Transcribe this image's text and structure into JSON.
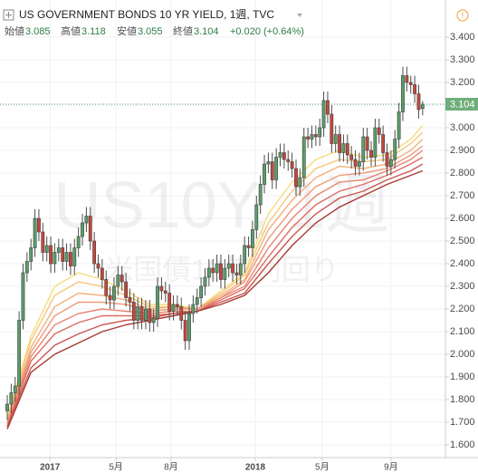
{
  "chart_data": {
    "type": "candlestick",
    "title": "US GOVERNMENT BONDS 10 YR YIELD, 1週, TVC",
    "ohlc_labels": [
      "始値",
      "高値",
      "安値",
      "終値"
    ],
    "change": "+0.020 (+0.64%)",
    "watermark": [
      "US10Y, 1週",
      "米国債10年利回り"
    ],
    "up_color": "#5a9f68",
    "down_color": "#c8463c",
    "grid": true,
    "ylim": [
      1.544,
      3.444
    ],
    "yticks": [
      {
        "value": 1.6,
        "label": "1.600"
      },
      {
        "value": 1.7,
        "label": "1.700"
      },
      {
        "value": 1.8,
        "label": "1.800"
      },
      {
        "value": 1.9,
        "label": "1.900"
      },
      {
        "value": 2.0,
        "label": "2.000"
      },
      {
        "value": 2.1,
        "label": "2.100"
      },
      {
        "value": 2.2,
        "label": "2.200"
      },
      {
        "value": 2.3,
        "label": "2.300"
      },
      {
        "value": 2.4,
        "label": "2.400"
      },
      {
        "value": 2.5,
        "label": "2.500"
      },
      {
        "value": 2.6,
        "label": "2.600"
      },
      {
        "value": 2.7,
        "label": "2.700"
      },
      {
        "value": 2.8,
        "label": "2.800"
      },
      {
        "value": 2.9,
        "label": "2.900"
      },
      {
        "value": 3.0,
        "label": "3.000"
      },
      {
        "value": 3.1,
        "label": "3.100"
      },
      {
        "value": 3.2,
        "label": "3.200"
      },
      {
        "value": 3.3,
        "label": "3.300"
      },
      {
        "value": 3.4,
        "label": "3.400"
      }
    ],
    "xlim": [
      -1.83,
      110.76
    ],
    "xticks": [
      {
        "value": 10.8,
        "label": "2017"
      },
      {
        "value": 27.5,
        "label": "5月"
      },
      {
        "value": 41.4,
        "label": "8月"
      },
      {
        "value": 62.7,
        "label": "2018"
      },
      {
        "value": 79.6,
        "label": "5月"
      },
      {
        "value": 97,
        "label": "9月"
      }
    ],
    "candles": {
      "open": [
        1.75,
        1.78,
        1.83,
        1.86,
        2.15,
        2.36,
        2.41,
        2.47,
        2.6,
        2.54,
        2.45,
        2.48,
        2.4,
        2.45,
        2.47,
        2.41,
        2.45,
        2.39,
        2.47,
        2.52,
        2.58,
        2.61,
        2.5,
        2.4,
        2.38,
        2.33,
        2.26,
        2.24,
        2.3,
        2.35,
        2.32,
        2.25,
        2.23,
        2.15,
        2.21,
        2.15,
        2.2,
        2.14,
        2.16,
        2.3,
        2.28,
        2.27,
        2.19,
        2.22,
        2.21,
        2.15,
        2.06,
        2.18,
        2.22,
        2.25,
        2.3,
        2.34,
        2.38,
        2.36,
        2.4,
        2.33,
        2.38,
        2.4,
        2.36,
        2.35,
        2.4,
        2.48,
        2.47,
        2.55,
        2.66,
        2.75,
        2.84,
        2.85,
        2.77,
        2.87,
        2.89,
        2.86,
        2.85,
        2.82,
        2.74,
        2.78,
        2.96,
        2.95,
        2.97,
        2.96,
        3.0,
        3.12,
        3.06,
        2.93,
        2.97,
        2.89,
        2.93,
        2.88,
        2.86,
        2.83,
        2.85,
        2.96,
        2.9,
        2.87,
        3.0,
        2.97,
        2.89,
        2.83,
        2.86,
        2.95,
        3.07,
        3.23,
        3.2,
        3.19,
        3.15,
        3.085
      ],
      "high": [
        1.82,
        1.87,
        1.9,
        2.19,
        2.4,
        2.45,
        2.51,
        2.64,
        2.64,
        2.58,
        2.52,
        2.52,
        2.49,
        2.51,
        2.51,
        2.49,
        2.49,
        2.51,
        2.56,
        2.62,
        2.65,
        2.65,
        2.54,
        2.44,
        2.42,
        2.37,
        2.3,
        2.34,
        2.39,
        2.39,
        2.36,
        2.29,
        2.27,
        2.25,
        2.25,
        2.24,
        2.24,
        2.2,
        2.34,
        2.34,
        2.32,
        2.31,
        2.26,
        2.26,
        2.25,
        2.19,
        2.22,
        2.26,
        2.29,
        2.34,
        2.38,
        2.42,
        2.42,
        2.44,
        2.44,
        2.42,
        2.44,
        2.44,
        2.4,
        2.44,
        2.52,
        2.52,
        2.59,
        2.7,
        2.79,
        2.88,
        2.89,
        2.89,
        2.91,
        2.93,
        2.93,
        2.9,
        2.89,
        2.86,
        2.82,
        3.0,
        3.0,
        3.01,
        3.01,
        3.04,
        3.16,
        3.16,
        3.1,
        3.01,
        3.01,
        2.97,
        2.97,
        2.92,
        2.9,
        2.89,
        3.0,
        3.0,
        2.94,
        3.04,
        3.04,
        3.01,
        2.93,
        2.9,
        2.99,
        3.11,
        3.27,
        3.27,
        3.23,
        3.23,
        3.19,
        3.118
      ],
      "low": [
        1.71,
        1.74,
        1.79,
        1.82,
        2.11,
        2.32,
        2.37,
        2.43,
        2.5,
        2.41,
        2.41,
        2.36,
        2.36,
        2.41,
        2.37,
        2.37,
        2.35,
        2.35,
        2.43,
        2.48,
        2.54,
        2.46,
        2.36,
        2.34,
        2.29,
        2.22,
        2.2,
        2.2,
        2.26,
        2.28,
        2.21,
        2.19,
        2.11,
        2.11,
        2.11,
        2.11,
        2.1,
        2.1,
        2.12,
        2.24,
        2.23,
        2.15,
        2.15,
        2.17,
        2.11,
        2.02,
        2.02,
        2.14,
        2.18,
        2.21,
        2.26,
        2.3,
        2.32,
        2.32,
        2.29,
        2.29,
        2.34,
        2.32,
        2.31,
        2.31,
        2.36,
        2.43,
        2.43,
        2.51,
        2.62,
        2.71,
        2.8,
        2.73,
        2.73,
        2.83,
        2.82,
        2.81,
        2.78,
        2.7,
        2.7,
        2.74,
        2.91,
        2.91,
        2.92,
        2.92,
        2.96,
        3.02,
        2.89,
        2.89,
        2.85,
        2.85,
        2.84,
        2.82,
        2.79,
        2.79,
        2.81,
        2.86,
        2.83,
        2.83,
        2.93,
        2.85,
        2.79,
        2.79,
        2.82,
        2.91,
        3.03,
        3.16,
        3.15,
        3.11,
        3.04,
        3.055
      ],
      "close": [
        1.78,
        1.83,
        1.86,
        2.15,
        2.36,
        2.41,
        2.47,
        2.6,
        2.54,
        2.45,
        2.48,
        2.4,
        2.45,
        2.47,
        2.41,
        2.45,
        2.39,
        2.47,
        2.52,
        2.58,
        2.61,
        2.5,
        2.4,
        2.38,
        2.33,
        2.26,
        2.24,
        2.3,
        2.35,
        2.32,
        2.25,
        2.23,
        2.15,
        2.21,
        2.15,
        2.2,
        2.14,
        2.16,
        2.3,
        2.28,
        2.27,
        2.19,
        2.22,
        2.21,
        2.15,
        2.06,
        2.18,
        2.22,
        2.25,
        2.3,
        2.34,
        2.38,
        2.36,
        2.4,
        2.33,
        2.38,
        2.4,
        2.36,
        2.35,
        2.4,
        2.48,
        2.47,
        2.55,
        2.66,
        2.75,
        2.84,
        2.85,
        2.77,
        2.87,
        2.89,
        2.86,
        2.85,
        2.82,
        2.74,
        2.78,
        2.96,
        2.95,
        2.97,
        2.96,
        3.0,
        3.12,
        3.06,
        2.93,
        2.97,
        2.89,
        2.93,
        2.88,
        2.86,
        2.83,
        2.85,
        2.96,
        2.9,
        2.87,
        3.0,
        2.97,
        2.89,
        2.83,
        2.86,
        2.95,
        3.07,
        3.23,
        3.2,
        3.19,
        3.15,
        3.08,
        3.104
      ]
    },
    "series": [
      {
        "color": "#f6dc7a",
        "x": [
          0,
          6,
          12,
          18,
          24,
          30,
          36,
          42,
          48,
          54,
          60,
          66,
          72,
          78,
          84,
          90,
          96,
          102,
          105
        ],
        "values": [
          1.72,
          2.08,
          2.3,
          2.36,
          2.33,
          2.28,
          2.22,
          2.22,
          2.2,
          2.28,
          2.36,
          2.62,
          2.76,
          2.86,
          2.9,
          2.87,
          2.88,
          2.95,
          3.01
        ]
      },
      {
        "color": "#f5c77d",
        "x": [
          0,
          6,
          12,
          18,
          24,
          30,
          36,
          42,
          48,
          54,
          60,
          66,
          72,
          78,
          84,
          90,
          96,
          102,
          105
        ],
        "values": [
          1.71,
          2.06,
          2.26,
          2.32,
          2.3,
          2.26,
          2.21,
          2.21,
          2.2,
          2.27,
          2.35,
          2.58,
          2.72,
          2.82,
          2.86,
          2.85,
          2.86,
          2.93,
          2.98
        ]
      },
      {
        "color": "#f3b07b",
        "x": [
          0,
          6,
          12,
          18,
          24,
          30,
          36,
          42,
          48,
          54,
          60,
          66,
          72,
          78,
          84,
          90,
          96,
          102,
          105
        ],
        "values": [
          1.71,
          2.03,
          2.21,
          2.27,
          2.26,
          2.24,
          2.2,
          2.21,
          2.2,
          2.26,
          2.33,
          2.55,
          2.68,
          2.78,
          2.83,
          2.82,
          2.84,
          2.9,
          2.95
        ]
      },
      {
        "color": "#ef9a78",
        "x": [
          0,
          6,
          12,
          18,
          24,
          30,
          36,
          42,
          48,
          54,
          60,
          66,
          72,
          78,
          84,
          90,
          96,
          102,
          105
        ],
        "values": [
          1.7,
          2.01,
          2.17,
          2.23,
          2.23,
          2.22,
          2.19,
          2.2,
          2.2,
          2.25,
          2.32,
          2.51,
          2.64,
          2.74,
          2.79,
          2.8,
          2.82,
          2.88,
          2.92
        ]
      },
      {
        "color": "#e98470",
        "x": [
          0,
          6,
          12,
          18,
          24,
          30,
          36,
          42,
          48,
          54,
          60,
          66,
          72,
          78,
          84,
          90,
          96,
          102,
          105
        ],
        "values": [
          1.69,
          1.99,
          2.13,
          2.18,
          2.2,
          2.19,
          2.18,
          2.19,
          2.19,
          2.25,
          2.3,
          2.47,
          2.6,
          2.7,
          2.76,
          2.77,
          2.81,
          2.86,
          2.9
        ]
      },
      {
        "color": "#de6d63",
        "x": [
          0,
          6,
          12,
          18,
          24,
          30,
          36,
          42,
          48,
          54,
          60,
          66,
          72,
          78,
          84,
          90,
          96,
          102,
          105
        ],
        "values": [
          1.68,
          1.97,
          2.09,
          2.14,
          2.17,
          2.17,
          2.17,
          2.18,
          2.19,
          2.24,
          2.29,
          2.43,
          2.56,
          2.66,
          2.72,
          2.75,
          2.79,
          2.84,
          2.87
        ]
      },
      {
        "color": "#cc5650",
        "x": [
          0,
          6,
          12,
          18,
          24,
          30,
          36,
          42,
          48,
          54,
          60,
          66,
          72,
          78,
          84,
          90,
          96,
          102,
          105
        ],
        "values": [
          1.68,
          1.94,
          2.04,
          2.09,
          2.13,
          2.15,
          2.16,
          2.18,
          2.19,
          2.23,
          2.27,
          2.4,
          2.52,
          2.62,
          2.69,
          2.72,
          2.77,
          2.81,
          2.84
        ]
      },
      {
        "color": "#a83a32",
        "x": [
          0,
          6,
          12,
          18,
          24,
          30,
          36,
          42,
          48,
          54,
          60,
          66,
          72,
          78,
          84,
          90,
          96,
          102,
          105
        ],
        "values": [
          1.67,
          1.92,
          2.0,
          2.05,
          2.1,
          2.13,
          2.15,
          2.17,
          2.19,
          2.22,
          2.26,
          2.36,
          2.48,
          2.58,
          2.65,
          2.7,
          2.75,
          2.79,
          2.81
        ]
      }
    ]
  }
}
